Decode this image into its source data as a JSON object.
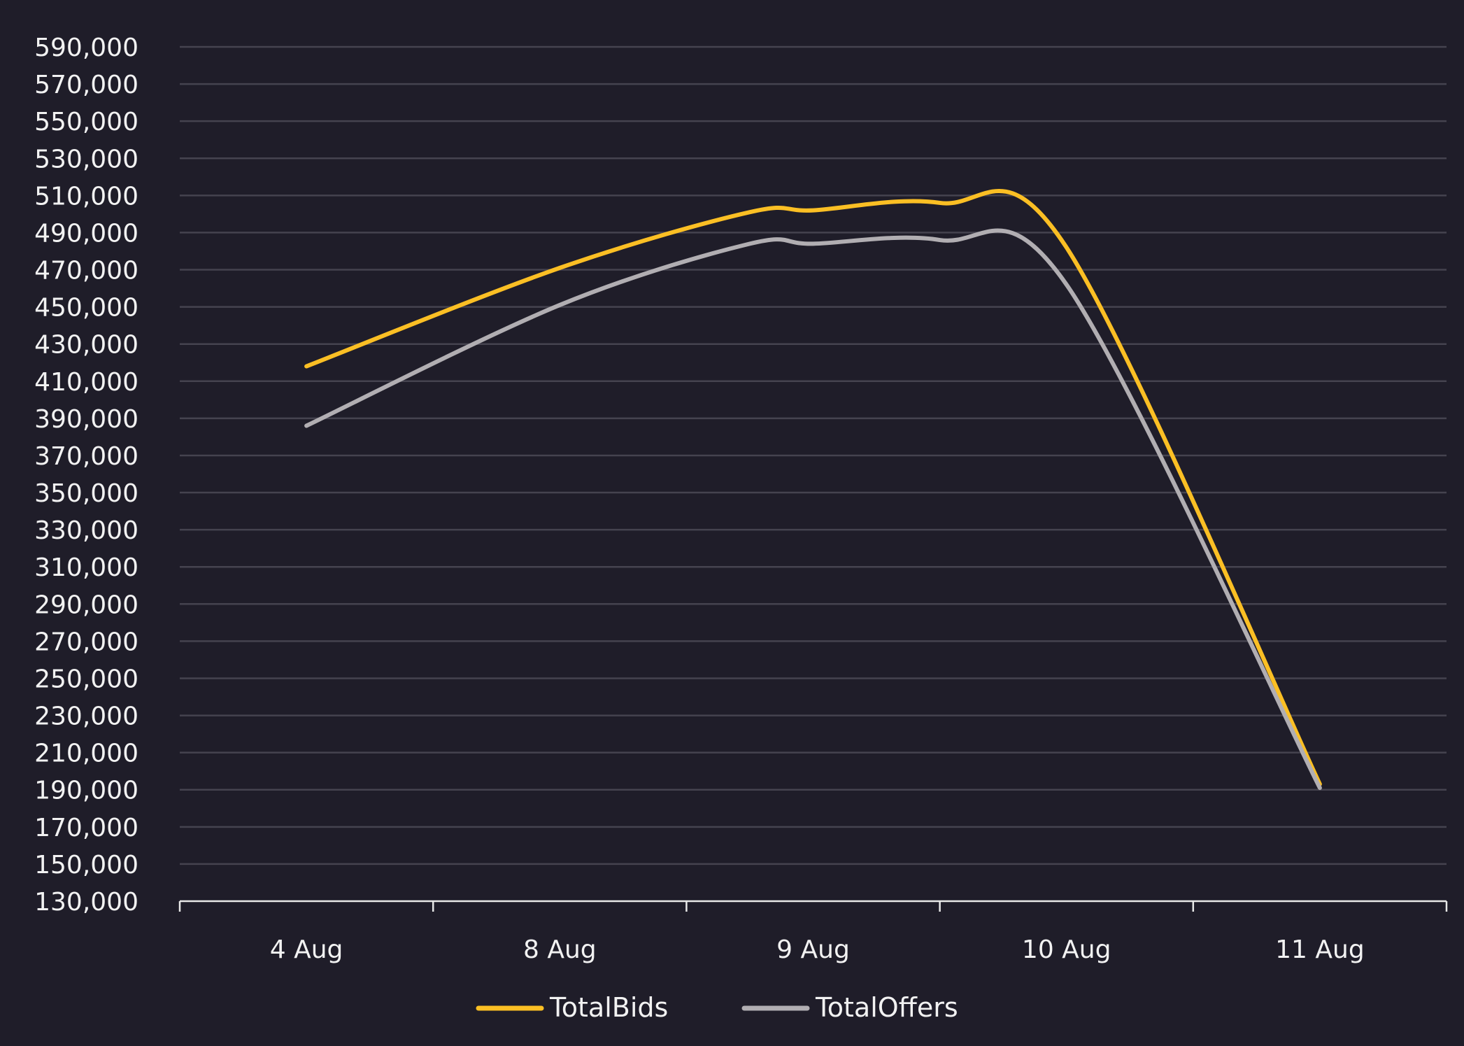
{
  "chart_data": {
    "type": "line",
    "categories": [
      "4 Aug",
      "8 Aug",
      "9 Aug",
      "10 Aug",
      "11 Aug"
    ],
    "x": [
      0,
      1,
      1.75,
      2,
      2.5,
      3,
      4
    ],
    "series": [
      {
        "name": "TotalBids",
        "color": "#fbbf24",
        "values": [
          418000,
          471000,
          501000,
          502000,
          506000,
          482000,
          193000
        ]
      },
      {
        "name": "TotalOffers",
        "color": "#b1aeb2",
        "values": [
          386000,
          451000,
          484000,
          484000,
          486000,
          462000,
          191000
        ]
      }
    ],
    "ylim": [
      130000,
      590000
    ],
    "y_ticks": [
      "130,000",
      "150,000",
      "170,000",
      "190,000",
      "210,000",
      "230,000",
      "250,000",
      "270,000",
      "290,000",
      "310,000",
      "330,000",
      "350,000",
      "370,000",
      "390,000",
      "410,000",
      "430,000",
      "450,000",
      "470,000",
      "490,000",
      "510,000",
      "530,000",
      "550,000",
      "570,000",
      "590,000"
    ],
    "grid": true,
    "legend_position": "bottom-center",
    "background": "#1f1d29"
  }
}
